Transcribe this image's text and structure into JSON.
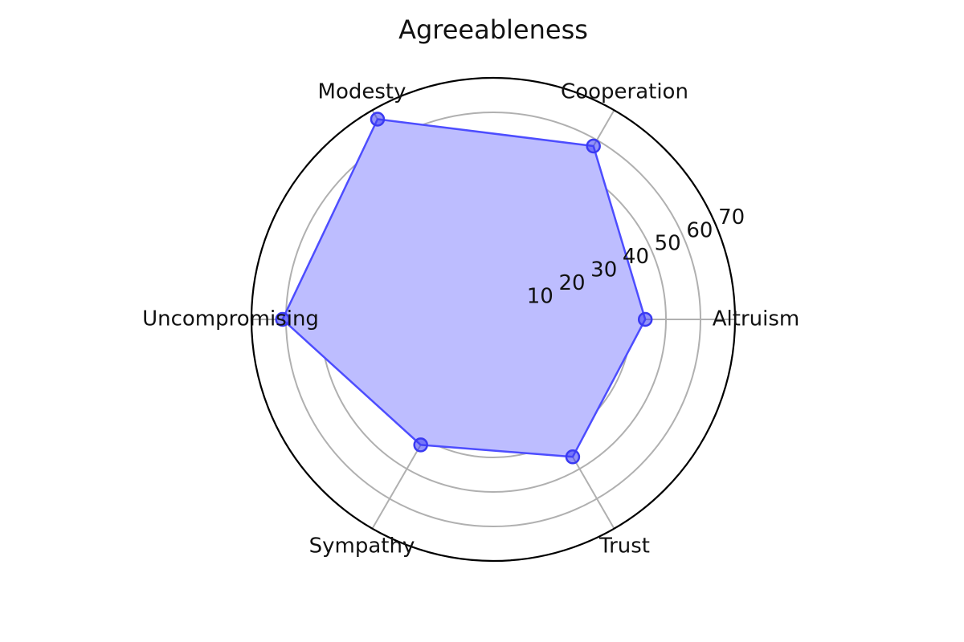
{
  "chart_data": {
    "type": "radar",
    "title": "Agreeableness",
    "categories": [
      "Altruism",
      "Cooperation",
      "Modesty",
      "Uncompromising",
      "Sympathy",
      "Trust"
    ],
    "series": [
      {
        "values": [
          44,
          58,
          67,
          61,
          42,
          46
        ]
      }
    ],
    "rlim": [
      0,
      70
    ],
    "radial_ticks": [
      10,
      20,
      30,
      40,
      50,
      60,
      70
    ],
    "grid": true,
    "colors": {
      "series_line": "#4d4dff",
      "series_fill": "#bdbdff",
      "series_marker": "#3a3af2",
      "grid": "#b0b0b0",
      "outer_ring": "#000000",
      "text": "#111111"
    }
  }
}
